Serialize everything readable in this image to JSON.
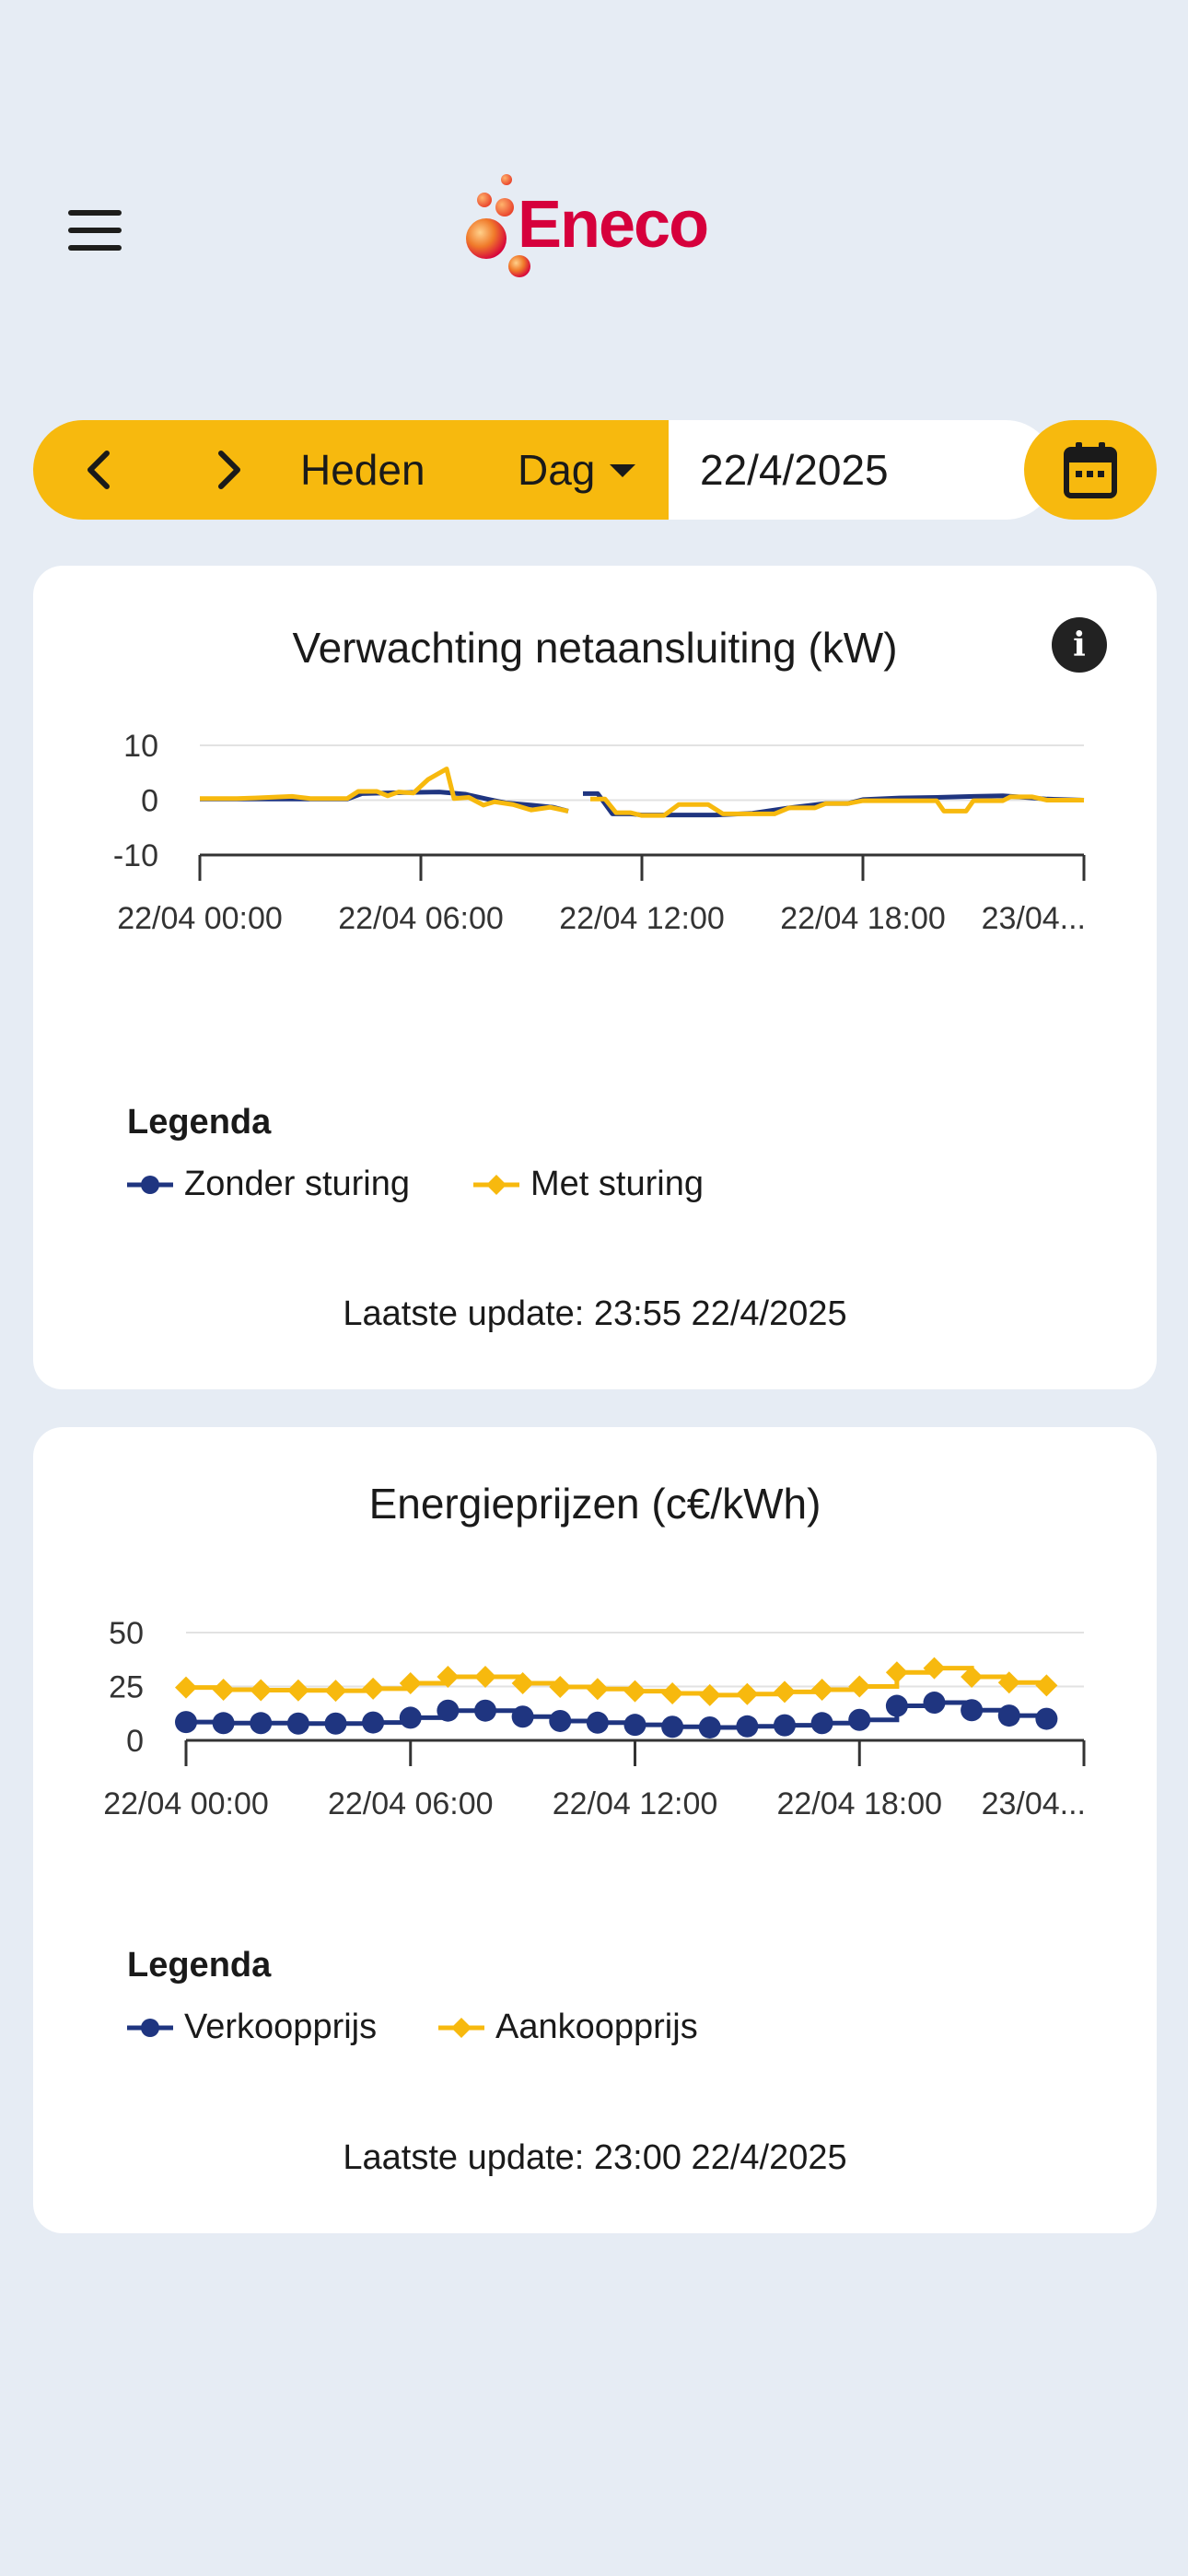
{
  "app": {
    "brand": "Eneco",
    "colors": {
      "background": "#e6ecf4",
      "accent": "#f7b90e",
      "navy": "#1f3580",
      "brand_red": "#d6003c"
    }
  },
  "toolbar": {
    "prev_icon": "chevron-left-icon",
    "next_icon": "chevron-right-icon",
    "today_label": "Heden",
    "period_label": "Dag",
    "date_value": "22/4/2025",
    "calendar_icon": "calendar-icon"
  },
  "grid_card": {
    "title": "Verwachting netaansluiting (kW)",
    "info_icon": "info-icon",
    "legend_title": "Legenda",
    "legend": [
      {
        "label": "Zonder sturing",
        "color": "#1f3580",
        "marker": "circle"
      },
      {
        "label": "Met sturing",
        "color": "#f7b90e",
        "marker": "diamond"
      }
    ],
    "last_update": "Laatste update: 23:55 22/4/2025"
  },
  "price_card": {
    "title": "Energieprijzen (c€/kWh)",
    "legend_title": "Legenda",
    "legend": [
      {
        "label": "Verkoopprijs",
        "color": "#1f3580",
        "marker": "circle"
      },
      {
        "label": "Aankoopprijs",
        "color": "#f7b90e",
        "marker": "diamond"
      }
    ],
    "last_update": "Laatste update: 23:00 22/4/2025"
  },
  "chart_data": [
    {
      "type": "line",
      "title": "Verwachting netaansluiting (kW)",
      "xlabel": "",
      "ylabel": "kW",
      "ylim": [
        -10,
        10
      ],
      "yticks": [
        10,
        0,
        -10
      ],
      "xlim": [
        0,
        24
      ],
      "xticks": [
        0,
        6,
        12,
        18,
        24
      ],
      "xtick_labels": [
        "22/04 00:00",
        "22/04 06:00",
        "22/04 12:00",
        "22/04 18:00",
        "23/04..."
      ],
      "grid": true,
      "series": [
        {
          "name": "Zonder sturing",
          "color": "#1f3580",
          "segments": [
            [
              [
                0,
                0.2
              ],
              [
                1,
                0.2
              ],
              [
                2,
                0.2
              ],
              [
                3,
                0.2
              ],
              [
                4,
                0.2
              ],
              [
                4.4,
                1.2
              ],
              [
                5,
                1.3
              ],
              [
                5.7,
                1.4
              ],
              [
                6.5,
                1.5
              ],
              [
                7.2,
                1.1
              ],
              [
                7.8,
                0.2
              ],
              [
                8.3,
                -0.5
              ],
              [
                9,
                -0.9
              ],
              [
                9.6,
                -1.3
              ],
              [
                10,
                -2.0
              ]
            ],
            [
              [
                10.4,
                1.2
              ],
              [
                10.8,
                1.2
              ],
              [
                11.2,
                -2.5
              ],
              [
                11.7,
                -2.5
              ],
              [
                12,
                -2.7
              ],
              [
                12.5,
                -2.7
              ],
              [
                13,
                -2.7
              ],
              [
                14,
                -2.7
              ],
              [
                15,
                -2.4
              ],
              [
                16,
                -1.4
              ],
              [
                17,
                -0.6
              ],
              [
                17.6,
                -0.6
              ],
              [
                18,
                0.1
              ],
              [
                19,
                0.4
              ],
              [
                20,
                0.5
              ],
              [
                21,
                0.7
              ],
              [
                21.8,
                0.8
              ],
              [
                22.2,
                0.6
              ],
              [
                23,
                0.2
              ],
              [
                24,
                0.0
              ]
            ]
          ]
        },
        {
          "name": "Met sturing",
          "color": "#f7b90e",
          "segments": [
            [
              [
                0,
                0.3
              ],
              [
                1,
                0.3
              ],
              [
                1.5,
                0.4
              ],
              [
                2.5,
                0.7
              ],
              [
                3,
                0.3
              ],
              [
                4,
                0.3
              ],
              [
                4.3,
                1.6
              ],
              [
                4.8,
                1.6
              ],
              [
                5.1,
                0.8
              ],
              [
                5.4,
                1.5
              ],
              [
                5.8,
                1.3
              ],
              [
                6.2,
                3.8
              ],
              [
                6.7,
                5.7
              ],
              [
                6.9,
                0.3
              ],
              [
                7.3,
                0.5
              ],
              [
                7.7,
                -0.9
              ],
              [
                8,
                -0.3
              ],
              [
                8.5,
                -0.8
              ],
              [
                9,
                -1.8
              ],
              [
                9.5,
                -1.3
              ],
              [
                10,
                -2.0
              ]
            ],
            [
              [
                10.6,
                0.2
              ],
              [
                11,
                0.2
              ],
              [
                11.3,
                -2.3
              ],
              [
                11.7,
                -2.3
              ],
              [
                12,
                -2.8
              ],
              [
                12.6,
                -2.8
              ],
              [
                13,
                -0.8
              ],
              [
                13.8,
                -0.8
              ],
              [
                14.2,
                -2.5
              ],
              [
                15.6,
                -2.5
              ],
              [
                16,
                -1.4
              ],
              [
                16.7,
                -1.4
              ],
              [
                17,
                -0.6
              ],
              [
                17.6,
                -0.6
              ],
              [
                18,
                -0.1
              ],
              [
                20,
                -0.1
              ],
              [
                20.2,
                -2.0
              ],
              [
                20.8,
                -2.0
              ],
              [
                21,
                -0.1
              ],
              [
                21.8,
                -0.1
              ],
              [
                22,
                0.6
              ],
              [
                22.6,
                0.6
              ],
              [
                23,
                0.0
              ],
              [
                24,
                0.0
              ]
            ]
          ]
        }
      ]
    },
    {
      "type": "line",
      "title": "Energieprijzen (c€/kWh)",
      "xlabel": "",
      "ylabel": "c€/kWh",
      "ylim": [
        0,
        50
      ],
      "yticks": [
        50,
        25,
        0
      ],
      "xlim": [
        0,
        24
      ],
      "xticks": [
        0,
        6,
        12,
        18,
        24
      ],
      "xtick_labels": [
        "22/04 00:00",
        "22/04 06:00",
        "22/04 12:00",
        "22/04 18:00",
        "23/04..."
      ],
      "grid": true,
      "step": true,
      "x": [
        0,
        1,
        2,
        3,
        4,
        5,
        6,
        7,
        8,
        9,
        10,
        11,
        12,
        13,
        14,
        15,
        16,
        17,
        18,
        19,
        20,
        21,
        22,
        23
      ],
      "series": [
        {
          "name": "Verkoopprijs",
          "color": "#1f3580",
          "marker": "circle",
          "values": [
            8.5,
            8.0,
            8.0,
            7.8,
            7.8,
            8.3,
            10.5,
            13.8,
            13.8,
            11.0,
            9.0,
            8.2,
            7.2,
            6.3,
            6.0,
            6.5,
            7.0,
            8.0,
            9.5,
            16.0,
            17.5,
            14.0,
            11.5,
            10.0
          ]
        },
        {
          "name": "Aankoopprijs",
          "color": "#f7b90e",
          "marker": "diamond",
          "values": [
            24.5,
            23.5,
            23.3,
            23.2,
            23.0,
            24.0,
            26.5,
            29.5,
            29.5,
            26.5,
            24.8,
            23.8,
            22.8,
            21.8,
            21.0,
            21.5,
            22.5,
            23.5,
            25.0,
            31.5,
            33.5,
            29.5,
            26.8,
            25.5
          ]
        }
      ]
    }
  ]
}
